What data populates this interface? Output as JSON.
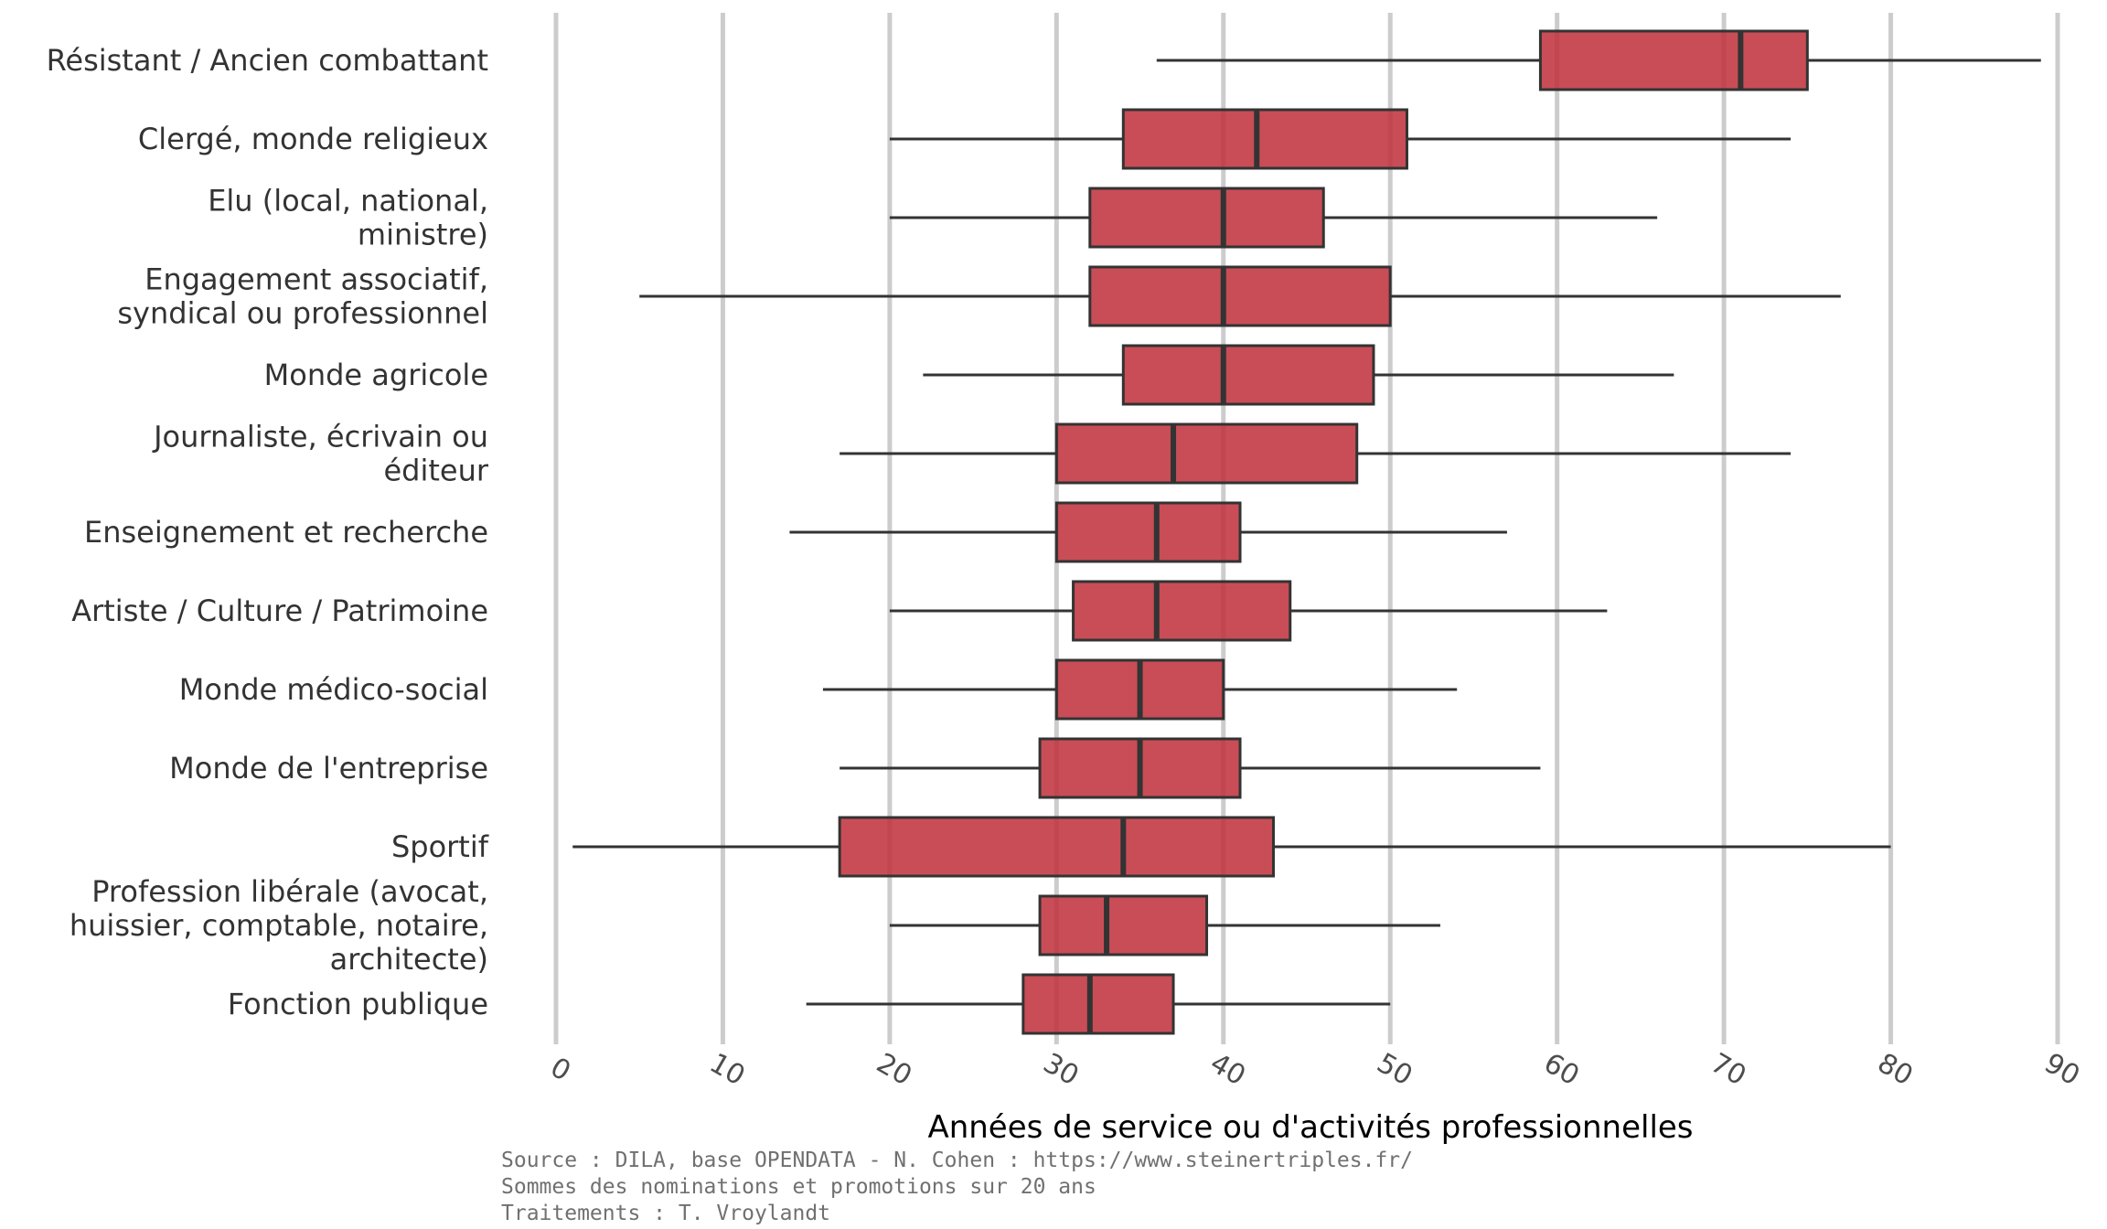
{
  "chart_data": {
    "type": "boxplot",
    "orientation": "horizontal",
    "xlabel": "Années de service ou d'activités professionnelles",
    "xlim": [
      0,
      90
    ],
    "xticks": [
      "0",
      "10",
      "20",
      "30",
      "40",
      "50",
      "60",
      "70",
      "80",
      "90"
    ],
    "grid": "vertical",
    "box_color": "#c0323c",
    "categories": [
      {
        "label": [
          "Résistant / Ancien combattant"
        ],
        "min": 36,
        "q1": 59,
        "median": 71,
        "q3": 75,
        "max": 89
      },
      {
        "label": [
          "Clergé, monde religieux"
        ],
        "min": 20,
        "q1": 34,
        "median": 42,
        "q3": 51,
        "max": 74
      },
      {
        "label": [
          "Elu (local, national,",
          "ministre)"
        ],
        "min": 20,
        "q1": 32,
        "median": 40,
        "q3": 46,
        "max": 66
      },
      {
        "label": [
          "Engagement associatif,",
          "syndical ou professionnel"
        ],
        "min": 5,
        "q1": 32,
        "median": 40,
        "q3": 50,
        "max": 77
      },
      {
        "label": [
          "Monde agricole"
        ],
        "min": 22,
        "q1": 34,
        "median": 40,
        "q3": 49,
        "max": 67
      },
      {
        "label": [
          "Journaliste, écrivain ou",
          "éditeur"
        ],
        "min": 17,
        "q1": 30,
        "median": 37,
        "q3": 48,
        "max": 74
      },
      {
        "label": [
          "Enseignement et recherche"
        ],
        "min": 14,
        "q1": 30,
        "median": 36,
        "q3": 41,
        "max": 57
      },
      {
        "label": [
          "Artiste / Culture / Patrimoine"
        ],
        "min": 20,
        "q1": 31,
        "median": 36,
        "q3": 44,
        "max": 63
      },
      {
        "label": [
          "Monde médico-social"
        ],
        "min": 16,
        "q1": 30,
        "median": 35,
        "q3": 40,
        "max": 54
      },
      {
        "label": [
          "Monde de l'entreprise"
        ],
        "min": 17,
        "q1": 29,
        "median": 35,
        "q3": 41,
        "max": 59
      },
      {
        "label": [
          "Sportif"
        ],
        "min": 1,
        "q1": 17,
        "median": 34,
        "q3": 43,
        "max": 80
      },
      {
        "label": [
          "Profession libérale (avocat,",
          "huissier, comptable, notaire,",
          "architecte)"
        ],
        "min": 20,
        "q1": 29,
        "median": 33,
        "q3": 39,
        "max": 53
      },
      {
        "label": [
          "Fonction publique"
        ],
        "min": 15,
        "q1": 28,
        "median": 32,
        "q3": 37,
        "max": 50
      }
    ]
  },
  "caption": {
    "line1": "Source : DILA, base OPENDATA - N. Cohen : https://www.steinertriples.fr/",
    "line2": "Sommes des nominations et promotions sur 20 ans",
    "line3": "Traitements : T. Vroylandt"
  }
}
